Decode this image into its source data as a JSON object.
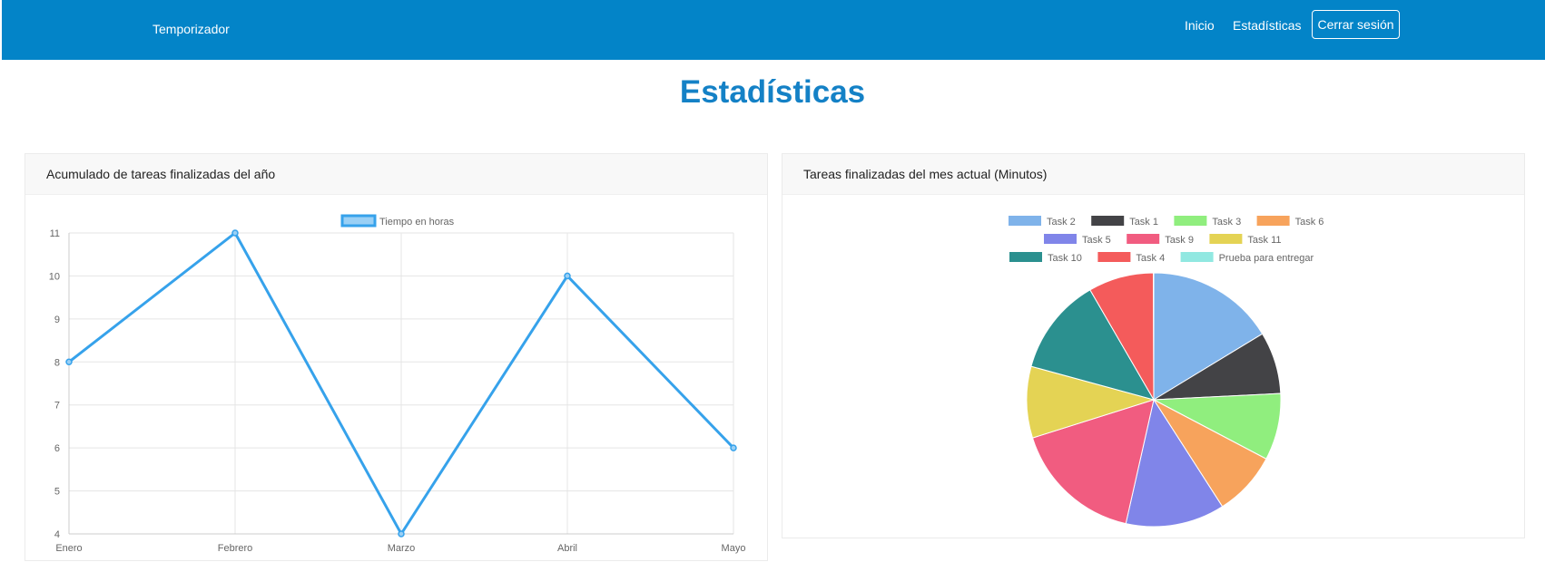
{
  "navbar": {
    "brand": "Temporizador",
    "links": [
      "Inicio",
      "Estadísticas"
    ],
    "logout_label": "Cerrar sesión",
    "background": "#0384c8"
  },
  "page": {
    "title": "Estadísticas"
  },
  "chart_data": [
    {
      "type": "line",
      "card_title": "Acumulado de tareas finalizadas del año",
      "categories": [
        "Enero",
        "Febrero",
        "Marzo",
        "Abril",
        "Mayo"
      ],
      "series": [
        {
          "name": "Tiempo en horas",
          "values": [
            8,
            11,
            4,
            10,
            6
          ],
          "color": "#36a2eb",
          "fill": "#9ad0f5"
        }
      ],
      "ylim": [
        4,
        11
      ],
      "yticks": [
        4,
        5,
        6,
        7,
        8,
        9,
        10,
        11
      ],
      "grid": true,
      "legend": "top"
    },
    {
      "type": "pie",
      "card_title": "Tareas finalizadas del mes actual (Minutos)",
      "labels": [
        "Task 2",
        "Task 1",
        "Task 3",
        "Task 6",
        "Task 5",
        "Task 9",
        "Task 11",
        "Task 10",
        "Task 4",
        "Prueba para entregar"
      ],
      "values": [
        16.3,
        7.9,
        8.5,
        8.2,
        12.6,
        16.6,
        9.1,
        12.4,
        8.3,
        0.05
      ],
      "colors": [
        "#7fb3ea",
        "#434346",
        "#90ee7e",
        "#f7a35c",
        "#8085e9",
        "#f15c80",
        "#e4d354",
        "#2b908f",
        "#f45b5b",
        "#91e8e1"
      ],
      "legend": "top"
    }
  ]
}
